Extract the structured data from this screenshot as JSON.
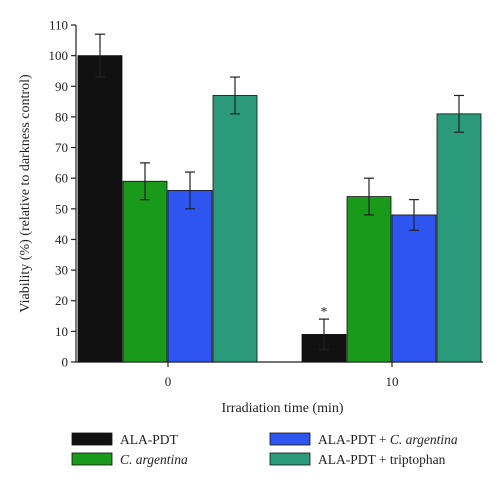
{
  "chart_data": {
    "type": "bar",
    "categories": [
      "0",
      "10"
    ],
    "series": [
      {
        "name": "ALA-PDT",
        "name_parts": [
          "ALA-PDT"
        ],
        "color": "#111111",
        "values": [
          100,
          9
        ],
        "errors": [
          7,
          5
        ]
      },
      {
        "name": "C. argentina",
        "name_parts": [
          "C. argentina"
        ],
        "name_italic": [
          true
        ],
        "color": "#1a9a1a",
        "values": [
          59,
          54
        ],
        "errors": [
          6,
          6
        ]
      },
      {
        "name": "ALA-PDT + C. argentina",
        "name_parts": [
          "ALA-PDT + ",
          "C. argentina"
        ],
        "name_italic": [
          false,
          true
        ],
        "color": "#2f55f0",
        "values": [
          56,
          48
        ],
        "errors": [
          6,
          5
        ]
      },
      {
        "name": "ALA-PDT + triptophan",
        "name_parts": [
          "ALA-PDT + triptophan"
        ],
        "color": "#2a9a7a",
        "values": [
          87,
          81
        ],
        "errors": [
          6,
          6
        ]
      }
    ],
    "xlabel": "Irradiation time (min)",
    "ylabel": "Viability (%) (relative to darkness control)",
    "ylim": [
      0,
      110
    ],
    "yticks": [
      0,
      10,
      20,
      30,
      40,
      50,
      60,
      70,
      80,
      90,
      100,
      110
    ],
    "annotations": [
      {
        "text": "*",
        "category": "0",
        "category_index": 1,
        "series_index": 0
      }
    ],
    "grid": false,
    "legend_position": "bottom"
  }
}
